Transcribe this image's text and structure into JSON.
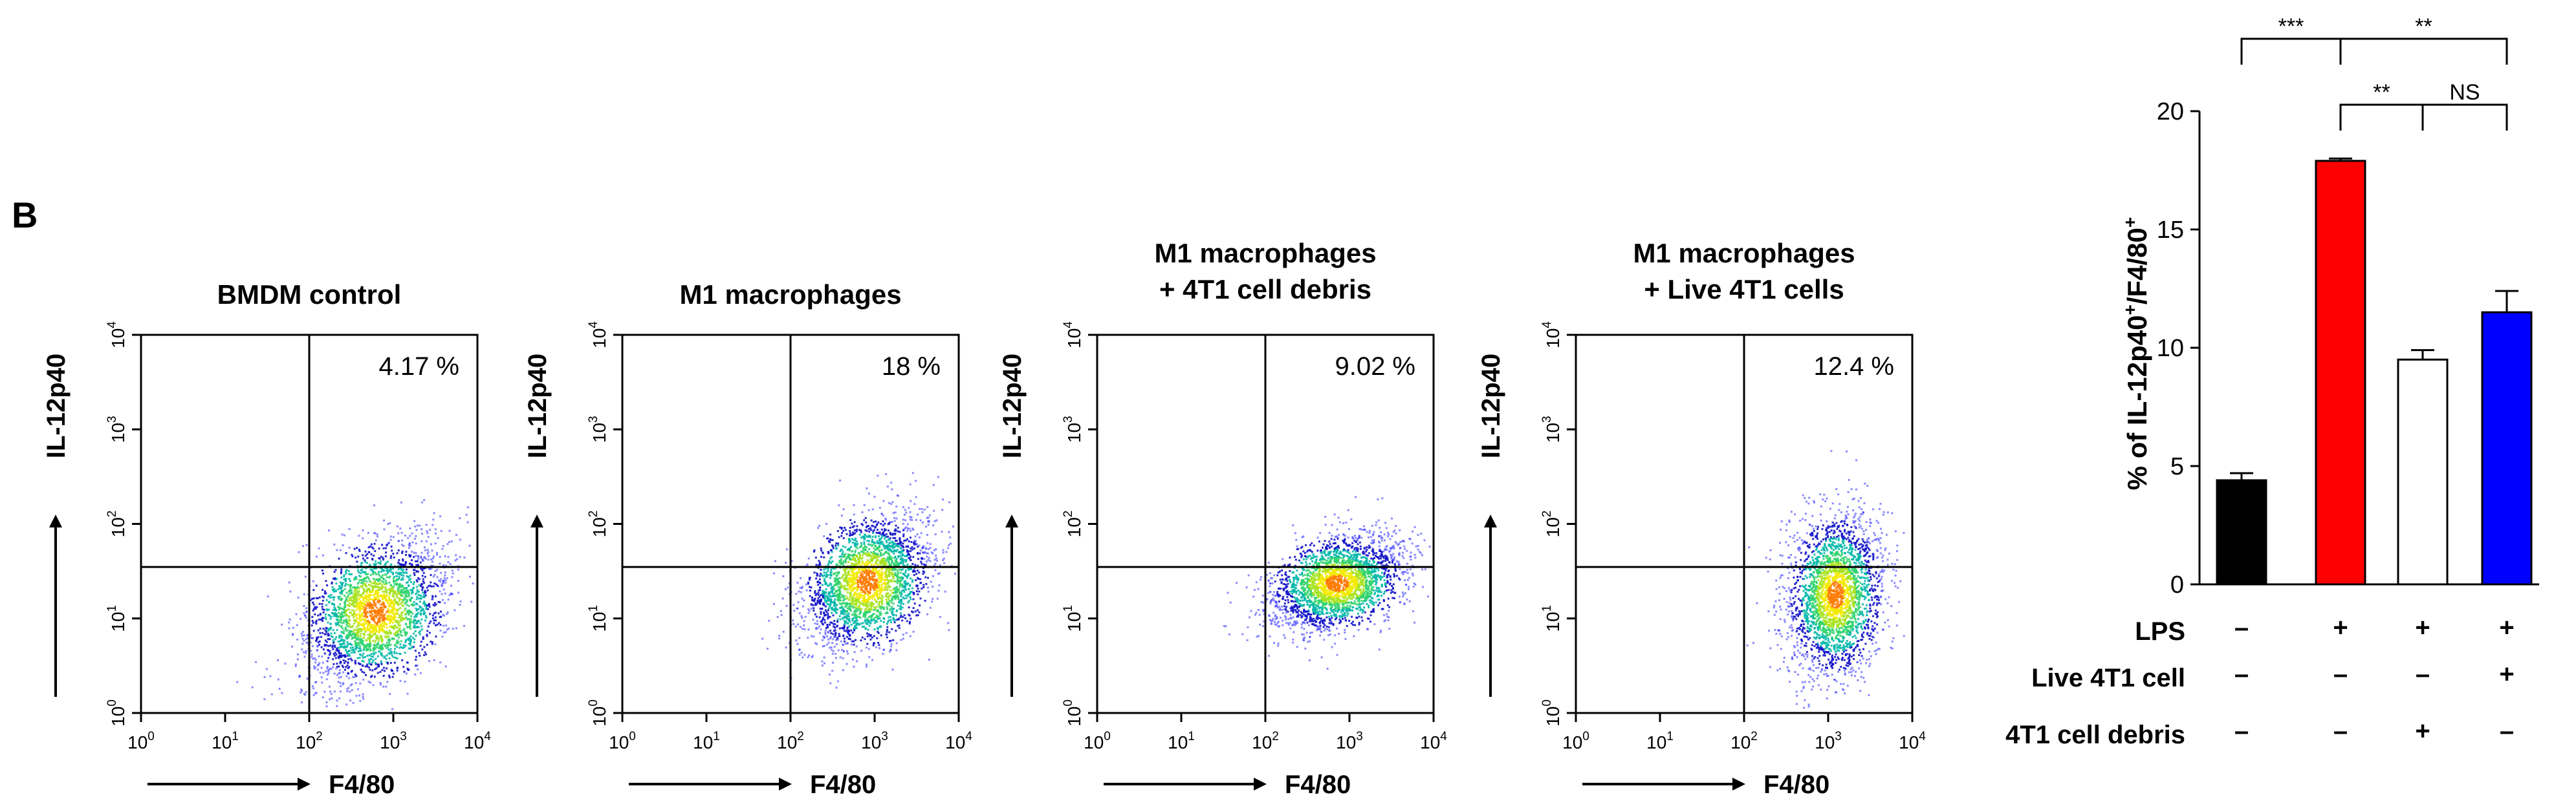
{
  "chart_data": [
    {
      "type": "scatter",
      "title": "BMDM control",
      "xlabel": "F4/80",
      "ylabel": "IL-12p40",
      "xlim": [
        1,
        10000
      ],
      "ylim": [
        1,
        10000
      ],
      "x_ticks": [
        "10",
        "10",
        "10",
        "10",
        "10"
      ],
      "x_tick_exps": [
        "0",
        "1",
        "2",
        "3",
        "4"
      ],
      "y_ticks": [
        "10",
        "10",
        "10",
        "10",
        "10"
      ],
      "y_tick_exps": [
        "0",
        "1",
        "2",
        "3",
        "4"
      ],
      "gate": {
        "x": 100,
        "y": 35
      },
      "upper_right_percent": "4.17 %",
      "population": {
        "center_x": 600,
        "center_y": 12,
        "spread_x": 0.42,
        "spread_y": 0.38
      }
    },
    {
      "type": "scatter",
      "title": "M1 macrophages",
      "xlabel": "F4/80",
      "ylabel": "IL-12p40",
      "xlim": [
        1,
        10000
      ],
      "ylim": [
        1,
        10000
      ],
      "x_ticks": [
        "10",
        "10",
        "10",
        "10",
        "10"
      ],
      "x_tick_exps": [
        "0",
        "1",
        "2",
        "3",
        "4"
      ],
      "y_ticks": [
        "10",
        "10",
        "10",
        "10",
        "10"
      ],
      "y_tick_exps": [
        "0",
        "1",
        "2",
        "3",
        "4"
      ],
      "gate": {
        "x": 100,
        "y": 35
      },
      "upper_right_percent": "18 %",
      "population": {
        "center_x": 800,
        "center_y": 25,
        "spread_x": 0.38,
        "spread_y": 0.36
      }
    },
    {
      "type": "scatter",
      "title": "M1 macrophages\n+ 4T1 cell debris",
      "xlabel": "F4/80",
      "ylabel": "IL-12p40",
      "xlim": [
        1,
        10000
      ],
      "ylim": [
        1,
        10000
      ],
      "x_ticks": [
        "10",
        "10",
        "10",
        "10",
        "10"
      ],
      "x_tick_exps": [
        "0",
        "1",
        "2",
        "3",
        "4"
      ],
      "y_ticks": [
        "10",
        "10",
        "10",
        "10",
        "10"
      ],
      "y_tick_exps": [
        "0",
        "1",
        "2",
        "3",
        "4"
      ],
      "gate": {
        "x": 100,
        "y": 35
      },
      "upper_right_percent": "9.02 %",
      "population": {
        "center_x": 700,
        "center_y": 24,
        "spread_x": 0.4,
        "spread_y": 0.25
      }
    },
    {
      "type": "scatter",
      "title": "M1 macrophages\n+ Live 4T1 cells",
      "xlabel": "F4/80",
      "ylabel": "IL-12p40",
      "xlim": [
        1,
        10000
      ],
      "ylim": [
        1,
        10000
      ],
      "x_ticks": [
        "10",
        "10",
        "10",
        "10",
        "10"
      ],
      "x_tick_exps": [
        "0",
        "1",
        "2",
        "3",
        "4"
      ],
      "y_ticks": [
        "10",
        "10",
        "10",
        "10",
        "10"
      ],
      "y_tick_exps": [
        "0",
        "1",
        "2",
        "3",
        "4"
      ],
      "gate": {
        "x": 100,
        "y": 35
      },
      "upper_right_percent": "12.4 %",
      "population": {
        "center_x": 1200,
        "center_y": 18,
        "spread_x": 0.28,
        "spread_y": 0.42
      }
    },
    {
      "type": "bar",
      "ylabel": "% of IL-12p40+/F4/80+",
      "ylabel_main": "% of IL-12p40",
      "ylabel_sup": "+",
      "ylabel_mid": "/F4/80",
      "ylabel_sup2": "+",
      "ylim": [
        0,
        20
      ],
      "y_ticks": [
        0,
        5,
        10,
        15,
        20
      ],
      "values": [
        4.4,
        17.9,
        9.5,
        11.5
      ],
      "errors": [
        0.3,
        0.1,
        0.4,
        0.9
      ],
      "bar_colors": [
        "#000000",
        "#ff0000",
        "#ffffff",
        "#0000ff"
      ],
      "conditions": [
        {
          "label": "LPS",
          "values": [
            "–",
            "+",
            "+",
            "+"
          ]
        },
        {
          "label": "Live 4T1 cell",
          "values": [
            "–",
            "–",
            "–",
            "+"
          ]
        },
        {
          "label": "4T1 cell debris",
          "values": [
            "–",
            "–",
            "+",
            "–"
          ]
        }
      ],
      "significance": [
        {
          "from": 0,
          "to": 1,
          "label": "***"
        },
        {
          "from": 1,
          "to": 3,
          "label": "**"
        },
        {
          "from": 1,
          "to": 2,
          "label": "**"
        },
        {
          "from": 2,
          "to": 3,
          "label": "NS"
        }
      ]
    }
  ],
  "panel_label": "B"
}
